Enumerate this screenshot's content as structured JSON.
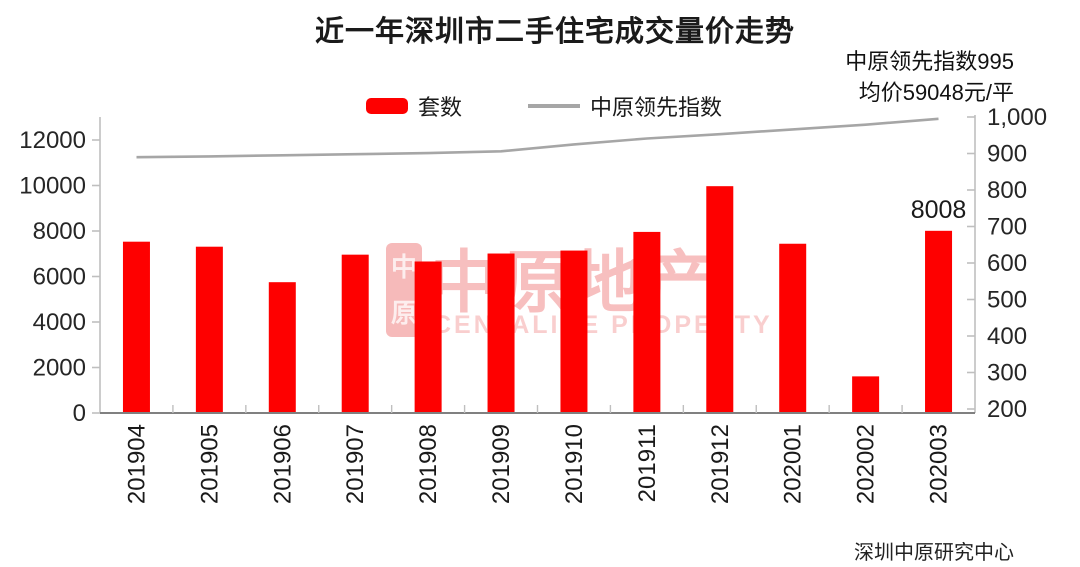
{
  "title": "近一年深圳市二手住宅成交量价走势",
  "annotations": {
    "line1": "中原领先指数995",
    "line2": "均价59048元/平"
  },
  "legend": [
    {
      "label": "套数",
      "swatch": "bar-swatch",
      "color": "#fe0000"
    },
    {
      "label": "中原领先指数",
      "swatch": "line-swatch",
      "color": "#a6a6a6"
    }
  ],
  "source": "深圳中原研究中心",
  "watermark": {
    "seal_top": "中",
    "seal_bottom": "原",
    "text": "中原地产",
    "subtext": "CENTALINE PROPERTY",
    "color": "#f5a9a9"
  },
  "chart_data": {
    "type": "bar",
    "title": "近一年深圳市二手住宅成交量价走势",
    "categories": [
      "201904",
      "201905",
      "201906",
      "201907",
      "201908",
      "201909",
      "201910",
      "201911",
      "201912",
      "202001",
      "202002",
      "202003"
    ],
    "series": [
      {
        "name": "套数",
        "chart": "bar",
        "axis": "left",
        "color": "#fe0000",
        "values": [
          7530,
          7310,
          5750,
          6960,
          6660,
          7010,
          7140,
          7960,
          9970,
          7440,
          1610,
          8008
        ]
      },
      {
        "name": "中原领先指数",
        "chart": "line",
        "axis": "right",
        "color": "#a6a6a6",
        "values": [
          890,
          892,
          895,
          898,
          901,
          906,
          925,
          941,
          953,
          966,
          979,
          995
        ]
      }
    ],
    "data_labels": [
      {
        "series": "套数",
        "category": "202003",
        "text": "8008"
      }
    ],
    "left_axis": {
      "min": 0,
      "max": 13100,
      "tick_values": [
        0,
        2000,
        4000,
        6000,
        8000,
        10000,
        12000
      ],
      "tick_labels": [
        "0",
        "2000",
        "4000",
        "6000",
        "8000",
        "10000",
        "12000"
      ]
    },
    "right_axis": {
      "min": 200,
      "max": 1000,
      "tick_values": [
        200,
        300,
        400,
        500,
        600,
        700,
        800,
        900,
        1000
      ],
      "tick_labels": [
        "200",
        "300",
        "400",
        "500",
        "600",
        "700",
        "800",
        "900",
        "1,000"
      ]
    },
    "grid": false,
    "legend_position": "top"
  }
}
